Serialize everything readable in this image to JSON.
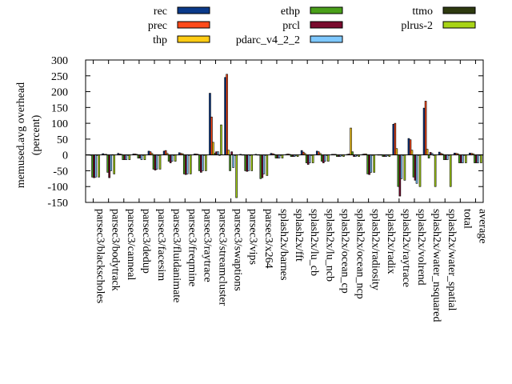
{
  "chart_data": {
    "type": "bar",
    "title": "",
    "xlabel": "",
    "ylabel": [
      "memused.avg overhead",
      "(percent)"
    ],
    "ylim": [
      -150,
      300
    ],
    "yticks": [
      -150,
      -100,
      -50,
      0,
      50,
      100,
      150,
      200,
      250,
      300
    ],
    "grid": false,
    "legend_position": "top",
    "categories": [
      "parsec3/blackscholes",
      "parsec3/bodytrack",
      "parsec3/canneal",
      "parsec3/dedup",
      "parsec3/facesim",
      "parsec3/fluidanimate",
      "parsec3/freqmine",
      "parsec3/raytrace",
      "parsec3/streamcluster",
      "parsec3/swaptions",
      "parsec3/vips",
      "parsec3/x264",
      "splash2x/barnes",
      "splash2x/fft",
      "splash2x/lu_cb",
      "splash2x/lu_ncb",
      "splash2x/ocean_cp",
      "splash2x/ocean_ncp",
      "splash2x/radiosity",
      "splash2x/radix",
      "splash2x/raytrace",
      "splash2x/volrend",
      "splash2x/water_nsquared",
      "splash2x/water_spatial",
      "total",
      "average"
    ],
    "series": [
      {
        "name": "rec",
        "color": "#0b3a8a",
        "values": [
          1,
          4,
          5,
          3,
          12,
          12,
          7,
          3,
          195,
          245,
          2,
          2,
          5,
          2,
          14,
          12,
          2,
          2,
          2,
          1,
          97,
          52,
          148,
          9,
          6,
          6
        ]
      },
      {
        "name": "prec",
        "color": "#ff4a1a",
        "values": [
          1,
          2,
          3,
          3,
          10,
          14,
          5,
          3,
          120,
          255,
          1,
          1,
          4,
          3,
          9,
          10,
          2,
          3,
          3,
          1,
          100,
          48,
          170,
          5,
          5,
          5
        ]
      },
      {
        "name": "thp",
        "color": "#ffcc14",
        "values": [
          0,
          2,
          2,
          2,
          5,
          5,
          4,
          2,
          40,
          15,
          1,
          1,
          2,
          2,
          5,
          5,
          2,
          85,
          3,
          1,
          20,
          15,
          18,
          3,
          4,
          4
        ]
      },
      {
        "name": "ethp",
        "color": "#4aa01a",
        "values": [
          -70,
          -55,
          -15,
          -10,
          -45,
          -20,
          -60,
          -50,
          5,
          -50,
          -50,
          -75,
          -10,
          -5,
          -25,
          -20,
          -5,
          10,
          -60,
          -5,
          -100,
          -70,
          -10,
          -15,
          -25,
          -25
        ]
      },
      {
        "name": "prcl",
        "color": "#7a0a2e",
        "values": [
          -72,
          -72,
          -15,
          -10,
          -48,
          -25,
          -62,
          -55,
          10,
          10,
          -52,
          -72,
          -10,
          -5,
          -30,
          -25,
          -5,
          -5,
          -62,
          -5,
          -130,
          -80,
          8,
          -15,
          -25,
          -25
        ]
      },
      {
        "name": "pdarc_v4_2_2",
        "color": "#7ec8ff",
        "values": [
          -70,
          -50,
          -15,
          -15,
          -45,
          -20,
          -60,
          -50,
          10,
          -40,
          -50,
          -60,
          -10,
          -5,
          -25,
          -20,
          -5,
          -5,
          -55,
          -5,
          -75,
          -90,
          5,
          -15,
          -25,
          -25
        ]
      },
      {
        "name": "ttmo",
        "color": "#2e3a10",
        "values": [
          0,
          1,
          0,
          0,
          0,
          0,
          0,
          0,
          0,
          0,
          0,
          0,
          0,
          0,
          0,
          0,
          0,
          0,
          0,
          0,
          0,
          0,
          0,
          0,
          0,
          0
        ]
      },
      {
        "name": "plrus-2",
        "color": "#a8d416",
        "values": [
          -70,
          -60,
          -15,
          -15,
          -45,
          -20,
          -60,
          -50,
          95,
          -135,
          -50,
          -65,
          -10,
          -5,
          -25,
          -20,
          -5,
          -5,
          -55,
          -5,
          -80,
          -100,
          -100,
          -100,
          -25,
          -25
        ]
      }
    ]
  }
}
